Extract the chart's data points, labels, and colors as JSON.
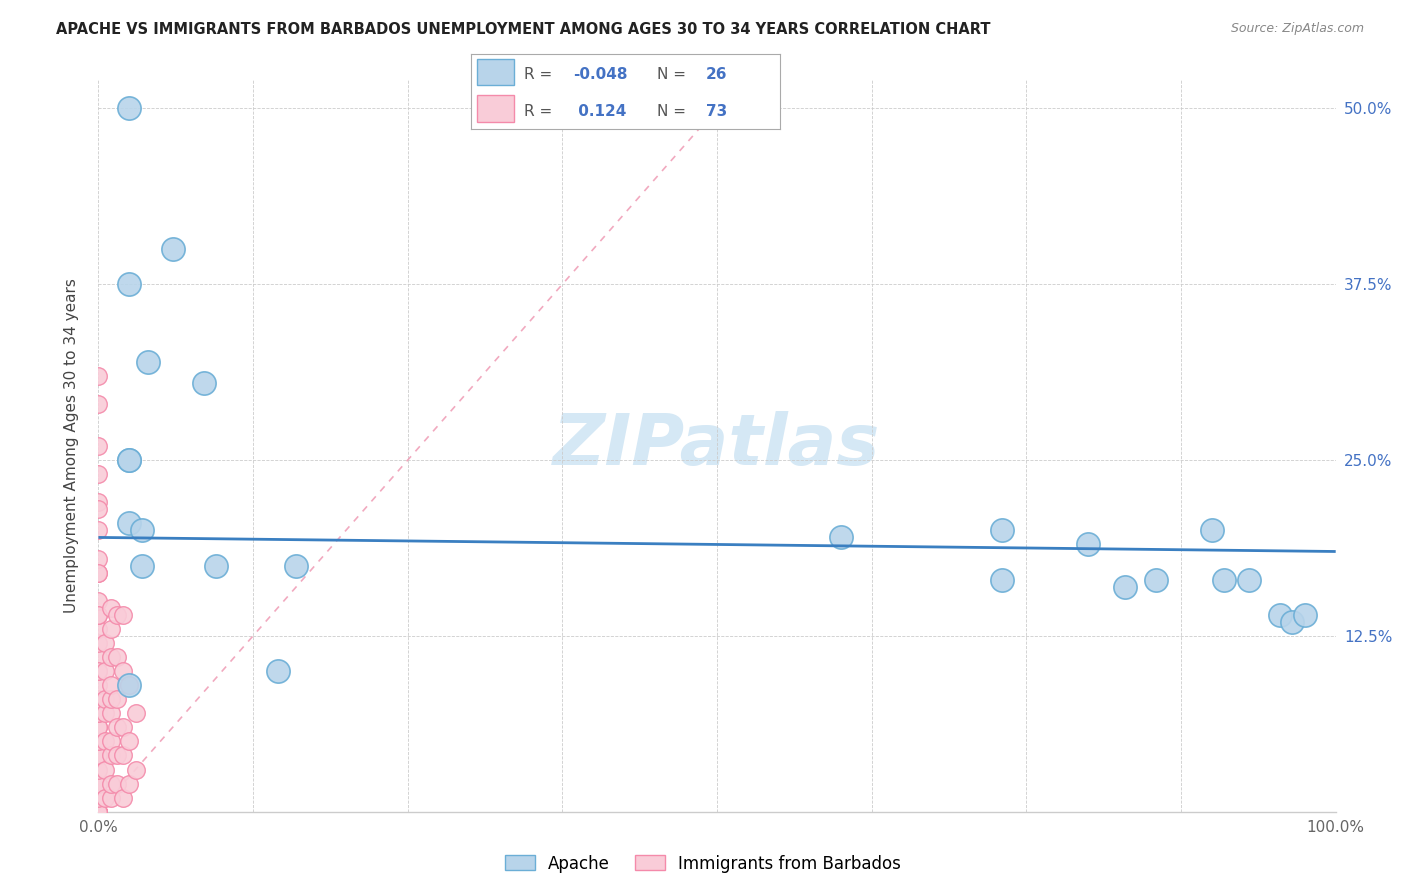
{
  "title": "APACHE VS IMMIGRANTS FROM BARBADOS UNEMPLOYMENT AMONG AGES 30 TO 34 YEARS CORRELATION CHART",
  "source": "Source: ZipAtlas.com",
  "ylabel": "Unemployment Among Ages 30 to 34 years",
  "xlim": [
    0.0,
    1.0
  ],
  "ylim": [
    0.0,
    0.52
  ],
  "apache_color": "#b8d4ea",
  "apache_edge_color": "#6baed6",
  "barbados_color": "#f9ccd8",
  "barbados_edge_color": "#f48aaa",
  "trend_line_color": "#3a7fc1",
  "ref_line_color": "#f0a0b8",
  "watermark_color": "#d5e8f5",
  "apache_x": [
    0.025,
    0.06,
    0.025,
    0.04,
    0.085,
    0.025,
    0.025,
    0.025,
    0.035,
    0.035,
    0.095,
    0.16,
    0.6,
    0.73,
    0.73,
    0.8,
    0.83,
    0.855,
    0.9,
    0.91,
    0.93,
    0.955,
    0.965,
    0.975,
    0.145,
    0.025
  ],
  "apache_y": [
    0.5,
    0.4,
    0.375,
    0.32,
    0.305,
    0.25,
    0.25,
    0.205,
    0.2,
    0.175,
    0.175,
    0.175,
    0.195,
    0.2,
    0.165,
    0.19,
    0.16,
    0.165,
    0.2,
    0.165,
    0.165,
    0.14,
    0.135,
    0.14,
    0.1,
    0.09
  ],
  "barbados_x": [
    0.0,
    0.0,
    0.0,
    0.0,
    0.0,
    0.0,
    0.0,
    0.0,
    0.0,
    0.0,
    0.0,
    0.0,
    0.0,
    0.0,
    0.0,
    0.0,
    0.0,
    0.0,
    0.0,
    0.0,
    0.0,
    0.0,
    0.0,
    0.0,
    0.0,
    0.0,
    0.0,
    0.0,
    0.0,
    0.0,
    0.0,
    0.0,
    0.0,
    0.0,
    0.0,
    0.0,
    0.0,
    0.0,
    0.0,
    0.0,
    0.005,
    0.005,
    0.005,
    0.005,
    0.005,
    0.005,
    0.005,
    0.01,
    0.01,
    0.01,
    0.01,
    0.01,
    0.01,
    0.01,
    0.01,
    0.01,
    0.01,
    0.015,
    0.015,
    0.015,
    0.015,
    0.015,
    0.015,
    0.02,
    0.02,
    0.02,
    0.02,
    0.02,
    0.025,
    0.025,
    0.025,
    0.03,
    0.03
  ],
  "barbados_y": [
    0.0,
    0.0,
    0.0,
    0.0,
    0.0,
    0.0,
    0.0,
    0.0,
    0.01,
    0.02,
    0.02,
    0.03,
    0.04,
    0.04,
    0.05,
    0.05,
    0.06,
    0.06,
    0.07,
    0.07,
    0.08,
    0.09,
    0.1,
    0.11,
    0.12,
    0.13,
    0.14,
    0.15,
    0.17,
    0.18,
    0.2,
    0.22,
    0.24,
    0.26,
    0.29,
    0.31,
    0.215,
    0.17,
    0.14,
    0.1,
    0.01,
    0.03,
    0.05,
    0.07,
    0.08,
    0.1,
    0.12,
    0.01,
    0.02,
    0.04,
    0.05,
    0.07,
    0.08,
    0.09,
    0.11,
    0.13,
    0.145,
    0.02,
    0.04,
    0.06,
    0.08,
    0.11,
    0.14,
    0.01,
    0.04,
    0.06,
    0.1,
    0.14,
    0.02,
    0.05,
    0.09,
    0.03,
    0.07
  ],
  "trend_line_x": [
    0.0,
    1.0
  ],
  "trend_line_y": [
    0.195,
    0.185
  ],
  "ref_line_x": [
    0.0,
    0.52
  ],
  "ref_line_y": [
    0.0,
    0.52
  ],
  "legend_apache_R": "-0.048",
  "legend_apache_N": "26",
  "legend_barbados_R": "0.124",
  "legend_barbados_N": "73"
}
